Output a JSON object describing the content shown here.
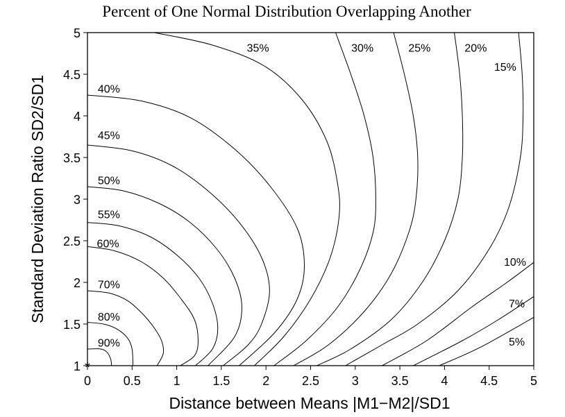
{
  "chart_data": {
    "type": "contour",
    "title": "Percent of One Normal Distribution Overlapping Another",
    "xlabel": "Distance between Means |M1−M2|/SD1",
    "ylabel": "Standard Deviation Ratio  SD2/SD1",
    "xlim": [
      0,
      5
    ],
    "ylim": [
      1,
      5
    ],
    "xticks": [
      "0",
      "0.5",
      "1",
      "1.5",
      "2",
      "2.5",
      "3",
      "3.5",
      "4",
      "4.5",
      "5"
    ],
    "xtick_values": [
      0,
      0.5,
      1,
      1.5,
      2,
      2.5,
      3,
      3.5,
      4,
      4.5,
      5
    ],
    "yticks": [
      "1",
      "1.5",
      "2",
      "2.5",
      "3",
      "3.5",
      "4",
      "4.5",
      "5"
    ],
    "ytick_values": [
      1,
      1.5,
      2,
      2.5,
      3,
      3.5,
      4,
      4.5,
      5
    ],
    "grid": false,
    "marker": {
      "symbol": "*",
      "x": 0,
      "y": 1
    },
    "contours": [
      {
        "label": "90%",
        "label_at": [
          0.24,
          1.28
        ],
        "points": [
          [
            0,
            1.2
          ],
          [
            0.15,
            1.2
          ],
          [
            0.22,
            1.16
          ],
          [
            0.26,
            1.08
          ],
          [
            0.27,
            1
          ]
        ]
      },
      {
        "label": "80%",
        "label_at": [
          0.24,
          1.59
        ],
        "points": [
          [
            0,
            1.52
          ],
          [
            0.18,
            1.5
          ],
          [
            0.33,
            1.44
          ],
          [
            0.45,
            1.33
          ],
          [
            0.5,
            1.2
          ],
          [
            0.51,
            1
          ]
        ]
      },
      {
        "label": "70%",
        "label_at": [
          0.24,
          1.98
        ],
        "points": [
          [
            0,
            1.9
          ],
          [
            0.25,
            1.87
          ],
          [
            0.45,
            1.78
          ],
          [
            0.62,
            1.62
          ],
          [
            0.75,
            1.45
          ],
          [
            0.83,
            1.3
          ],
          [
            0.85,
            1.15
          ],
          [
            0.78,
            1
          ]
        ]
      },
      {
        "label": "60%",
        "label_at": [
          0.23,
          2.47
        ],
        "points": [
          [
            0,
            2.43
          ],
          [
            0.3,
            2.38
          ],
          [
            0.6,
            2.25
          ],
          [
            0.85,
            2.05
          ],
          [
            1.05,
            1.8
          ],
          [
            1.2,
            1.55
          ],
          [
            1.24,
            1.3
          ],
          [
            1.2,
            1.12
          ],
          [
            1.04,
            1
          ]
        ]
      },
      {
        "label": "55%",
        "label_at": [
          0.24,
          2.82
        ],
        "points": [
          [
            0,
            2.72
          ],
          [
            0.35,
            2.68
          ],
          [
            0.7,
            2.55
          ],
          [
            1.0,
            2.33
          ],
          [
            1.25,
            2.05
          ],
          [
            1.4,
            1.75
          ],
          [
            1.46,
            1.45
          ],
          [
            1.4,
            1.2
          ],
          [
            1.21,
            1
          ]
        ]
      },
      {
        "label": "50%",
        "label_at": [
          0.24,
          3.23
        ],
        "points": [
          [
            0,
            3.15
          ],
          [
            0.4,
            3.1
          ],
          [
            0.8,
            2.95
          ],
          [
            1.15,
            2.72
          ],
          [
            1.45,
            2.4
          ],
          [
            1.65,
            2.05
          ],
          [
            1.73,
            1.7
          ],
          [
            1.65,
            1.35
          ],
          [
            1.35,
            1
          ]
        ]
      },
      {
        "label": "45%",
        "label_at": [
          0.24,
          3.77
        ],
        "points": [
          [
            0,
            3.65
          ],
          [
            0.5,
            3.58
          ],
          [
            0.95,
            3.4
          ],
          [
            1.35,
            3.1
          ],
          [
            1.7,
            2.72
          ],
          [
            1.95,
            2.3
          ],
          [
            2.04,
            1.9
          ],
          [
            1.95,
            1.5
          ],
          [
            1.8,
            1.25
          ],
          [
            1.52,
            1
          ]
        ]
      },
      {
        "label": "40%",
        "label_at": [
          0.24,
          4.33
        ],
        "points": [
          [
            0,
            4.25
          ],
          [
            0.6,
            4.18
          ],
          [
            1.15,
            3.98
          ],
          [
            1.65,
            3.6
          ],
          [
            2.05,
            3.15
          ],
          [
            2.35,
            2.65
          ],
          [
            2.43,
            2.2
          ],
          [
            2.35,
            1.8
          ],
          [
            2.1,
            1.4
          ],
          [
            1.7,
            1
          ]
        ]
      },
      {
        "label": "35%",
        "label_at": [
          1.91,
          4.82
        ],
        "points": [
          [
            0.75,
            5
          ],
          [
            1.4,
            4.85
          ],
          [
            1.98,
            4.6
          ],
          [
            2.4,
            4.2
          ],
          [
            2.68,
            3.7
          ],
          [
            2.8,
            3.2
          ],
          [
            2.82,
            2.8
          ],
          [
            2.72,
            2.3
          ],
          [
            2.5,
            1.8
          ],
          [
            2.2,
            1.35
          ],
          [
            1.87,
            1
          ]
        ]
      },
      {
        "label": "30%",
        "label_at": [
          3.08,
          4.82
        ],
        "points": [
          [
            2.78,
            5
          ],
          [
            2.95,
            4.5
          ],
          [
            3.1,
            4.0
          ],
          [
            3.2,
            3.5
          ],
          [
            3.23,
            3.0
          ],
          [
            3.2,
            2.6
          ],
          [
            3.05,
            2.15
          ],
          [
            2.8,
            1.7
          ],
          [
            2.45,
            1.3
          ],
          [
            2.09,
            1
          ]
        ]
      },
      {
        "label": "25%",
        "label_at": [
          3.72,
          4.82
        ],
        "points": [
          [
            3.43,
            5
          ],
          [
            3.55,
            4.5
          ],
          [
            3.65,
            4.0
          ],
          [
            3.7,
            3.5
          ],
          [
            3.68,
            3.0
          ],
          [
            3.6,
            2.6
          ],
          [
            3.4,
            2.1
          ],
          [
            3.1,
            1.65
          ],
          [
            2.7,
            1.25
          ],
          [
            2.31,
            1
          ]
        ]
      },
      {
        "label": "20%",
        "label_at": [
          4.35,
          4.82
        ],
        "points": [
          [
            4.11,
            5
          ],
          [
            4.17,
            4.5
          ],
          [
            4.2,
            4.0
          ],
          [
            4.2,
            3.5
          ],
          [
            4.15,
            3.0
          ],
          [
            4.0,
            2.5
          ],
          [
            3.75,
            2.0
          ],
          [
            3.4,
            1.55
          ],
          [
            2.95,
            1.2
          ],
          [
            2.57,
            1
          ]
        ]
      },
      {
        "label": "15%",
        "label_at": [
          4.68,
          4.59
        ],
        "points": [
          [
            4.83,
            5
          ],
          [
            4.87,
            4.5
          ],
          [
            4.88,
            4.0
          ],
          [
            4.85,
            3.5
          ],
          [
            4.72,
            2.9
          ],
          [
            4.5,
            2.4
          ],
          [
            4.15,
            1.9
          ],
          [
            3.7,
            1.5
          ],
          [
            3.3,
            1.25
          ],
          [
            2.89,
            1
          ]
        ]
      },
      {
        "label": "10%",
        "label_at": [
          4.79,
          2.25
        ],
        "points": [
          [
            3.3,
            1
          ],
          [
            3.8,
            1.3
          ],
          [
            4.3,
            1.7
          ],
          [
            4.7,
            2.0
          ],
          [
            5,
            2.24
          ]
        ]
      },
      {
        "label": "7%",
        "label_at": [
          4.81,
          1.75
        ],
        "points": [
          [
            3.65,
            1
          ],
          [
            4.2,
            1.3
          ],
          [
            4.6,
            1.55
          ],
          [
            5,
            1.83
          ]
        ]
      },
      {
        "label": "5%",
        "label_at": [
          4.81,
          1.29
        ],
        "points": [
          [
            3.94,
            1
          ],
          [
            4.4,
            1.22
          ],
          [
            5,
            1.58
          ]
        ]
      }
    ]
  }
}
